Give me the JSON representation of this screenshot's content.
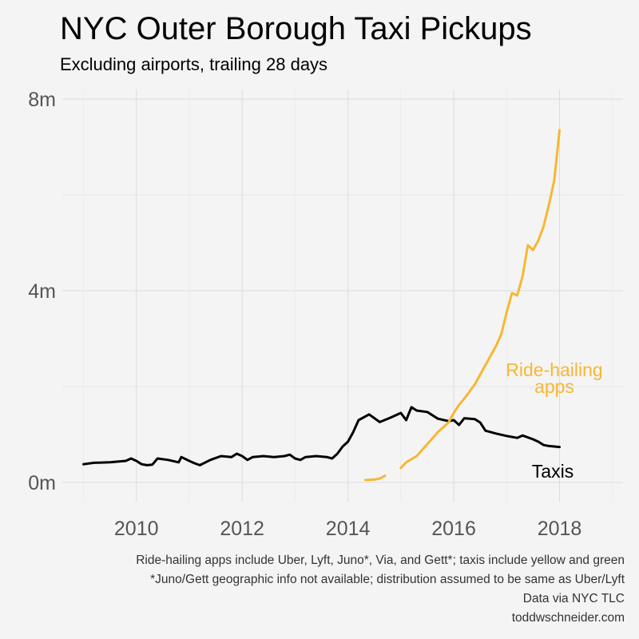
{
  "chart_data": {
    "type": "line",
    "title": "NYC Outer Borough Taxi Pickups",
    "subtitle": "Excluding airports, trailing 28 days",
    "xlabel": "",
    "ylabel": "",
    "xlim": [
      2008.6,
      2019.2
    ],
    "ylim": [
      -0.4,
      8.2
    ],
    "x_ticks": [
      2010,
      2012,
      2014,
      2016,
      2018
    ],
    "x_tick_labels": [
      "2010",
      "2012",
      "2014",
      "2016",
      "2018"
    ],
    "y_ticks": [
      0,
      4,
      8
    ],
    "y_tick_labels": [
      "0m",
      "4m",
      "8m"
    ],
    "y_minor_ticks": [
      2,
      6
    ],
    "x_minor_ticks": [
      2009,
      2011,
      2013,
      2015,
      2017,
      2019
    ],
    "grid": true,
    "legend": "none (direct labels)",
    "series": [
      {
        "name": "Taxis",
        "color": "#000000",
        "segments": [
          [
            [
              2009.0,
              0.38
            ],
            [
              2009.2,
              0.41
            ],
            [
              2009.5,
              0.42
            ],
            [
              2009.8,
              0.45
            ],
            [
              2009.9,
              0.5
            ],
            [
              2010.0,
              0.45
            ],
            [
              2010.1,
              0.38
            ],
            [
              2010.2,
              0.36
            ],
            [
              2010.3,
              0.37
            ],
            [
              2010.4,
              0.5
            ],
            [
              2010.6,
              0.47
            ],
            [
              2010.8,
              0.42
            ],
            [
              2010.85,
              0.53
            ],
            [
              2011.0,
              0.45
            ],
            [
              2011.1,
              0.4
            ],
            [
              2011.2,
              0.36
            ],
            [
              2011.4,
              0.47
            ],
            [
              2011.6,
              0.55
            ],
            [
              2011.8,
              0.53
            ],
            [
              2011.9,
              0.6
            ],
            [
              2012.0,
              0.55
            ],
            [
              2012.1,
              0.47
            ],
            [
              2012.2,
              0.53
            ],
            [
              2012.4,
              0.55
            ],
            [
              2012.6,
              0.53
            ],
            [
              2012.8,
              0.55
            ],
            [
              2012.9,
              0.58
            ],
            [
              2013.0,
              0.5
            ],
            [
              2013.1,
              0.47
            ],
            [
              2013.2,
              0.53
            ],
            [
              2013.4,
              0.55
            ],
            [
              2013.6,
              0.53
            ],
            [
              2013.7,
              0.5
            ],
            [
              2013.8,
              0.6
            ],
            [
              2013.9,
              0.75
            ],
            [
              2014.0,
              0.85
            ],
            [
              2014.1,
              1.05
            ],
            [
              2014.2,
              1.3
            ],
            [
              2014.4,
              1.42
            ],
            [
              2014.6,
              1.26
            ],
            [
              2014.8,
              1.35
            ],
            [
              2015.0,
              1.45
            ],
            [
              2015.1,
              1.3
            ],
            [
              2015.2,
              1.57
            ],
            [
              2015.3,
              1.5
            ],
            [
              2015.5,
              1.47
            ],
            [
              2015.7,
              1.33
            ],
            [
              2015.9,
              1.28
            ],
            [
              2016.0,
              1.3
            ],
            [
              2016.1,
              1.2
            ],
            [
              2016.2,
              1.34
            ],
            [
              2016.4,
              1.32
            ],
            [
              2016.5,
              1.25
            ],
            [
              2016.6,
              1.08
            ],
            [
              2016.8,
              1.02
            ],
            [
              2017.0,
              0.97
            ],
            [
              2017.2,
              0.93
            ],
            [
              2017.3,
              0.98
            ],
            [
              2017.5,
              0.9
            ],
            [
              2017.6,
              0.85
            ],
            [
              2017.7,
              0.78
            ],
            [
              2017.8,
              0.76
            ],
            [
              2017.9,
              0.75
            ],
            [
              2018.0,
              0.74
            ]
          ]
        ]
      },
      {
        "name": "Ride-hailing apps",
        "color": "#f7b733",
        "segments": [
          [
            [
              2014.33,
              0.05
            ],
            [
              2014.5,
              0.06
            ],
            [
              2014.6,
              0.08
            ],
            [
              2014.7,
              0.14
            ]
          ],
          [
            [
              2015.0,
              0.3
            ],
            [
              2015.1,
              0.42
            ],
            [
              2015.3,
              0.55
            ],
            [
              2015.5,
              0.8
            ],
            [
              2015.7,
              1.05
            ],
            [
              2015.9,
              1.25
            ],
            [
              2016.0,
              1.45
            ],
            [
              2016.1,
              1.62
            ],
            [
              2016.2,
              1.75
            ],
            [
              2016.4,
              2.05
            ],
            [
              2016.6,
              2.45
            ],
            [
              2016.8,
              2.85
            ],
            [
              2016.9,
              3.1
            ],
            [
              2017.0,
              3.55
            ],
            [
              2017.1,
              3.95
            ],
            [
              2017.2,
              3.9
            ],
            [
              2017.3,
              4.3
            ],
            [
              2017.4,
              4.95
            ],
            [
              2017.5,
              4.85
            ],
            [
              2017.6,
              5.05
            ],
            [
              2017.7,
              5.35
            ],
            [
              2017.8,
              5.8
            ],
            [
              2017.9,
              6.3
            ],
            [
              2018.0,
              7.35
            ]
          ]
        ]
      }
    ],
    "annotations": [
      {
        "text": "Ride-hailing",
        "color": "#f7b733"
      },
      {
        "text": "apps",
        "color": "#f7b733"
      },
      {
        "text": "Taxis",
        "color": "#000000"
      }
    ]
  },
  "captions": [
    "Ride-hailing apps include Uber, Lyft, Juno*, Via, and Gett*; taxis include yellow and green",
    "*Juno/Gett geographic info not available; distribution assumed to be same as Uber/Lyft",
    "Data via NYC TLC",
    "toddwschneider.com"
  ]
}
